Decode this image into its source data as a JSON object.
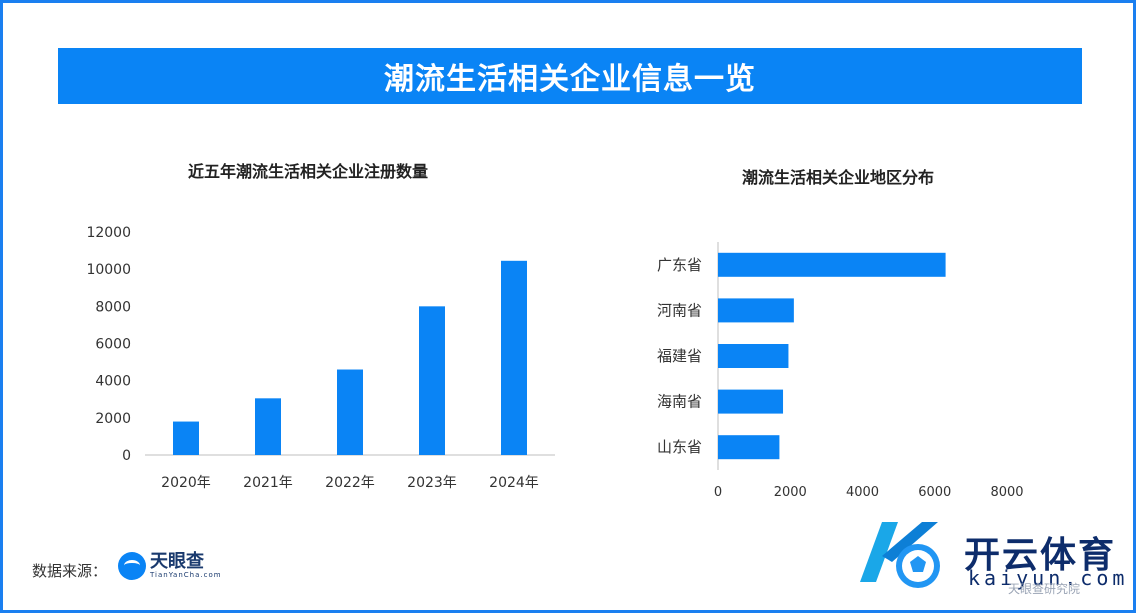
{
  "header": {
    "title": "潮流生活相关企业信息一览"
  },
  "chart_data": [
    {
      "type": "bar",
      "title": "近五年潮流生活相关企业注册数量",
      "categories": [
        "2020年",
        "2021年",
        "2022年",
        "2023年",
        "2024年"
      ],
      "values": [
        1800,
        3050,
        4600,
        8000,
        10450
      ],
      "ylim": [
        0,
        12000
      ],
      "yticks": [
        0,
        2000,
        4000,
        6000,
        8000,
        10000,
        12000
      ],
      "grid": false,
      "color": "#0a84f5"
    },
    {
      "type": "bar",
      "orientation": "horizontal",
      "title": "潮流生活相关企业地区分布",
      "categories": [
        "广东省",
        "河南省",
        "福建省",
        "海南省",
        "山东省"
      ],
      "values": [
        6300,
        2100,
        1950,
        1800,
        1700
      ],
      "xlim": [
        0,
        8000
      ],
      "xticks": [
        0,
        2000,
        4000,
        6000,
        8000
      ],
      "grid": false,
      "color": "#0a84f5"
    }
  ],
  "footer": {
    "source_label": "数据来源：",
    "source_logo_cn": "天眼查",
    "source_logo_en": "TianYanCha.com"
  },
  "watermark": {
    "brand": "开云体育",
    "url": "kaiyun.com",
    "small": "天眼查研究院"
  }
}
